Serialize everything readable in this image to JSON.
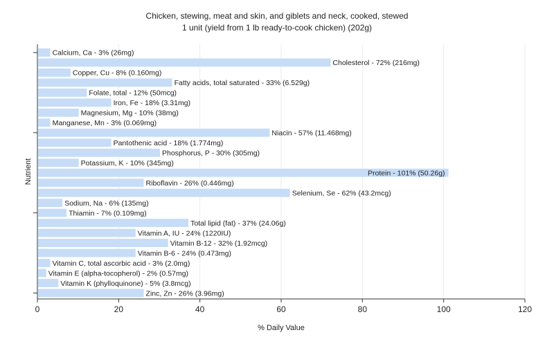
{
  "chart_data": {
    "type": "bar",
    "orientation": "horizontal",
    "title": "Chicken, stewing, meat and skin, and giblets and neck, cooked, stewed",
    "subtitle": "1 unit (yield from 1 lb ready-to-cook chicken) (202g)",
    "xlabel": "% Daily Value",
    "ylabel": "Nutrient",
    "xlim": [
      0,
      120
    ],
    "xticks": [
      0,
      20,
      40,
      60,
      80,
      100,
      120
    ],
    "grid": true,
    "bar_color": "#c6dcf7",
    "categories": [
      "Calcium, Ca",
      "Cholesterol",
      "Copper, Cu",
      "Fatty acids, total saturated",
      "Folate, total",
      "Iron, Fe",
      "Magnesium, Mg",
      "Manganese, Mn",
      "Niacin",
      "Pantothenic acid",
      "Phosphorus, P",
      "Potassium, K",
      "Protein",
      "Riboflavin",
      "Selenium, Se",
      "Sodium, Na",
      "Thiamin",
      "Total lipid (fat)",
      "Vitamin A, IU",
      "Vitamin B-12",
      "Vitamin B-6",
      "Vitamin C, total ascorbic acid",
      "Vitamin E (alpha-tocopherol)",
      "Vitamin K (phylloquinone)",
      "Zinc, Zn"
    ],
    "values": [
      3,
      72,
      8,
      33,
      12,
      18,
      10,
      3,
      57,
      18,
      30,
      10,
      101,
      26,
      62,
      6,
      7,
      37,
      24,
      32,
      24,
      3,
      2,
      5,
      26
    ],
    "labels": [
      "Calcium, Ca - 3% (26mg)",
      "Cholesterol - 72% (216mg)",
      "Copper, Cu - 8% (0.160mg)",
      "Fatty acids, total saturated - 33% (6.529g)",
      "Folate, total - 12% (50mcg)",
      "Iron, Fe - 18% (3.31mg)",
      "Magnesium, Mg - 10% (38mg)",
      "Manganese, Mn - 3% (0.069mg)",
      "Niacin - 57% (11.468mg)",
      "Pantothenic acid - 18% (1.774mg)",
      "Phosphorus, P - 30% (305mg)",
      "Potassium, K - 10% (345mg)",
      "Protein - 101% (50.26g)",
      "Riboflavin - 26% (0.446mg)",
      "Selenium, Se - 62% (43.2mcg)",
      "Sodium, Na - 6% (135mg)",
      "Thiamin - 7% (0.109mg)",
      "Total lipid (fat) - 37% (24.06g)",
      "Vitamin A, IU - 24% (1220IU)",
      "Vitamin B-12 - 32% (1.92mcg)",
      "Vitamin B-6 - 24% (0.473mg)",
      "Vitamin C, total ascorbic acid - 3% (2.0mg)",
      "Vitamin E (alpha-tocopherol) - 2% (0.57mg)",
      "Vitamin K (phylloquinone) - 5% (3.8mcg)",
      "Zinc, Zn - 26% (3.96mg)"
    ]
  }
}
